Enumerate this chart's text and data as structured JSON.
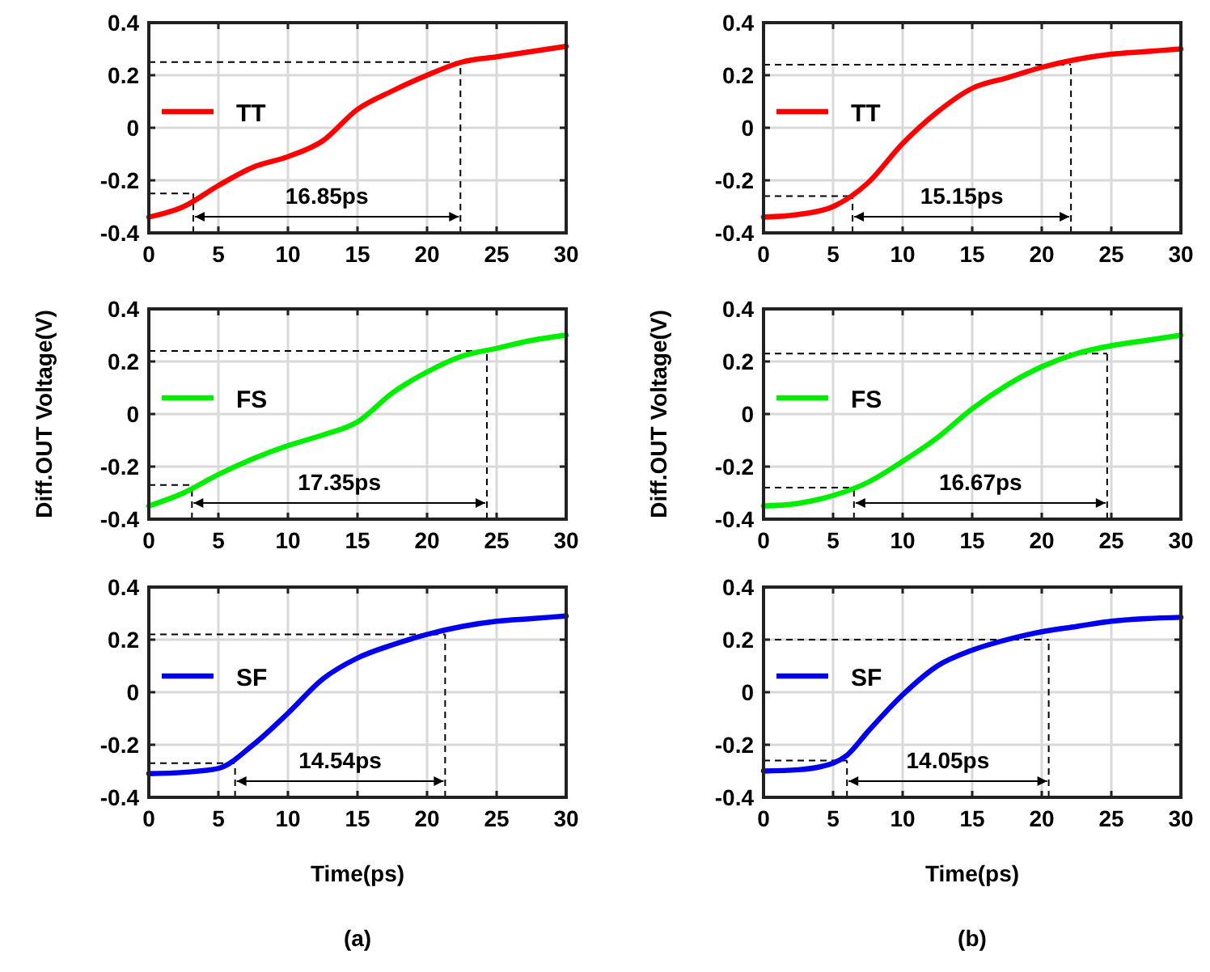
{
  "chart_data": [
    {
      "type": "line",
      "series": [
        {
          "name": "TT",
          "color": "#ff0000",
          "x": [
            0,
            2.5,
            5,
            7.5,
            10,
            12.5,
            15,
            17.5,
            20,
            22.5,
            25,
            27.5,
            30
          ],
          "values": [
            -0.34,
            -0.3,
            -0.22,
            -0.15,
            -0.11,
            -0.05,
            0.07,
            0.14,
            0.2,
            0.25,
            0.27,
            0.29,
            0.31
          ]
        }
      ],
      "xlim": [
        0,
        30
      ],
      "ylim": [
        -0.4,
        0.4
      ],
      "xticks": [
        0,
        5,
        10,
        15,
        20,
        25,
        30
      ],
      "yticks": [
        -0.4,
        -0.2,
        0,
        0.2,
        0.4
      ],
      "grid": true,
      "legend": "left",
      "line_style": "solid",
      "ref_lines": [
        {
          "axis": "y",
          "value": -0.25,
          "color": "#000000",
          "line_style": "dashed"
        },
        {
          "axis": "y",
          "value": 0.25,
          "color": "#000000",
          "line_style": "dashed"
        },
        {
          "axis": "x",
          "value": 3.2,
          "color": "#000000",
          "line_style": "dashed"
        },
        {
          "axis": "x",
          "value": 22.4,
          "color": "#000000",
          "line_style": "dashed"
        }
      ],
      "annotations": [
        "16.85ps"
      ]
    },
    {
      "type": "line",
      "series": [
        {
          "name": "FS",
          "color": "#00ee00",
          "x": [
            0,
            2.5,
            5,
            7.5,
            10,
            12.5,
            15,
            17.5,
            20,
            22.5,
            25,
            27.5,
            30
          ],
          "values": [
            -0.35,
            -0.3,
            -0.23,
            -0.17,
            -0.12,
            -0.08,
            -0.03,
            0.08,
            0.16,
            0.22,
            0.25,
            0.28,
            0.3
          ]
        }
      ],
      "xlim": [
        0,
        30
      ],
      "ylim": [
        -0.4,
        0.4
      ],
      "xticks": [
        0,
        5,
        10,
        15,
        20,
        25,
        30
      ],
      "yticks": [
        -0.4,
        -0.2,
        0,
        0.2,
        0.4
      ],
      "grid": true,
      "legend": "left",
      "line_style": "solid",
      "ylabel": "Diff.OUT Voltage(V)",
      "ref_lines": [
        {
          "axis": "y",
          "value": -0.27,
          "color": "#000000",
          "line_style": "dashed"
        },
        {
          "axis": "y",
          "value": 0.24,
          "color": "#000000",
          "line_style": "dashed"
        },
        {
          "axis": "x",
          "value": 3.1,
          "color": "#000000",
          "line_style": "dashed"
        },
        {
          "axis": "x",
          "value": 24.3,
          "color": "#000000",
          "line_style": "dashed"
        }
      ],
      "annotations": [
        "17.35ps"
      ]
    },
    {
      "type": "line",
      "series": [
        {
          "name": "SF",
          "color": "#0000ee",
          "x": [
            0,
            2.5,
            5,
            7.5,
            10,
            12.5,
            15,
            17.5,
            20,
            22.5,
            25,
            27.5,
            30
          ],
          "values": [
            -0.31,
            -0.305,
            -0.29,
            -0.2,
            -0.08,
            0.05,
            0.13,
            0.18,
            0.22,
            0.25,
            0.27,
            0.28,
            0.29
          ]
        }
      ],
      "xlim": [
        0,
        30
      ],
      "ylim": [
        -0.4,
        0.4
      ],
      "xticks": [
        0,
        5,
        10,
        15,
        20,
        25,
        30
      ],
      "yticks": [
        -0.4,
        -0.2,
        0,
        0.2,
        0.4
      ],
      "grid": true,
      "legend": "left",
      "line_style": "solid",
      "xlabel": "Time(ps)",
      "ref_lines": [
        {
          "axis": "y",
          "value": -0.27,
          "color": "#000000",
          "line_style": "dashed"
        },
        {
          "axis": "y",
          "value": 0.22,
          "color": "#000000",
          "line_style": "dashed"
        },
        {
          "axis": "x",
          "value": 6.2,
          "color": "#000000",
          "line_style": "dashed"
        },
        {
          "axis": "x",
          "value": 21.3,
          "color": "#000000",
          "line_style": "dashed"
        }
      ],
      "annotations": [
        "14.54ps",
        "(a)"
      ]
    },
    {
      "type": "line",
      "series": [
        {
          "name": "TT",
          "color": "#ff0000",
          "x": [
            0,
            2.5,
            5,
            7.5,
            10,
            12.5,
            15,
            17.5,
            20,
            22.5,
            25,
            27.5,
            30
          ],
          "values": [
            -0.34,
            -0.33,
            -0.3,
            -0.21,
            -0.06,
            0.06,
            0.15,
            0.19,
            0.23,
            0.26,
            0.28,
            0.29,
            0.3
          ]
        }
      ],
      "xlim": [
        0,
        30
      ],
      "ylim": [
        -0.4,
        0.4
      ],
      "xticks": [
        0,
        5,
        10,
        15,
        20,
        25,
        30
      ],
      "yticks": [
        -0.4,
        -0.2,
        0,
        0.2,
        0.4
      ],
      "grid": true,
      "legend": "left",
      "line_style": "solid",
      "ref_lines": [
        {
          "axis": "y",
          "value": -0.26,
          "color": "#000000",
          "line_style": "dashed"
        },
        {
          "axis": "y",
          "value": 0.24,
          "color": "#000000",
          "line_style": "dashed"
        },
        {
          "axis": "x",
          "value": 6.4,
          "color": "#000000",
          "line_style": "dashed"
        },
        {
          "axis": "x",
          "value": 22.1,
          "color": "#000000",
          "line_style": "dashed"
        }
      ],
      "annotations": [
        "15.15ps"
      ]
    },
    {
      "type": "line",
      "series": [
        {
          "name": "FS",
          "color": "#00ee00",
          "x": [
            0,
            2.5,
            5,
            7.5,
            10,
            12.5,
            15,
            17.5,
            20,
            22.5,
            25,
            27.5,
            30
          ],
          "values": [
            -0.35,
            -0.34,
            -0.31,
            -0.26,
            -0.18,
            -0.09,
            0.02,
            0.11,
            0.18,
            0.23,
            0.26,
            0.28,
            0.3
          ]
        }
      ],
      "xlim": [
        0,
        30
      ],
      "ylim": [
        -0.4,
        0.4
      ],
      "xticks": [
        0,
        5,
        10,
        15,
        20,
        25,
        30
      ],
      "yticks": [
        -0.4,
        -0.2,
        0,
        0.2,
        0.4
      ],
      "grid": true,
      "legend": "left",
      "line_style": "solid",
      "ylabel": "Diff.OUT Voltage(V)",
      "ref_lines": [
        {
          "axis": "y",
          "value": -0.28,
          "color": "#000000",
          "line_style": "dashed"
        },
        {
          "axis": "y",
          "value": 0.23,
          "color": "#000000",
          "line_style": "dashed"
        },
        {
          "axis": "x",
          "value": 6.5,
          "color": "#000000",
          "line_style": "dashed"
        },
        {
          "axis": "x",
          "value": 24.7,
          "color": "#000000",
          "line_style": "dashed"
        }
      ],
      "annotations": [
        "16.67ps"
      ]
    },
    {
      "type": "line",
      "series": [
        {
          "name": "SF",
          "color": "#0000ee",
          "x": [
            0,
            2.5,
            5,
            6,
            7.5,
            10,
            12.5,
            15,
            17.5,
            20,
            22.5,
            25,
            27.5,
            30
          ],
          "values": [
            -0.3,
            -0.295,
            -0.27,
            -0.24,
            -0.15,
            -0.01,
            0.1,
            0.16,
            0.2,
            0.23,
            0.25,
            0.27,
            0.28,
            0.285
          ]
        }
      ],
      "xlim": [
        0,
        30
      ],
      "ylim": [
        -0.4,
        0.4
      ],
      "xticks": [
        0,
        5,
        10,
        15,
        20,
        25,
        30
      ],
      "yticks": [
        -0.4,
        -0.2,
        0,
        0.2,
        0.4
      ],
      "grid": true,
      "legend": "left",
      "line_style": "solid",
      "xlabel": "Time(ps)",
      "ref_lines": [
        {
          "axis": "y",
          "value": -0.26,
          "color": "#000000",
          "line_style": "dashed"
        },
        {
          "axis": "y",
          "value": 0.2,
          "color": "#000000",
          "line_style": "dashed"
        },
        {
          "axis": "x",
          "value": 6,
          "color": "#000000",
          "line_style": "dashed"
        },
        {
          "axis": "x",
          "value": 20.5,
          "color": "#000000",
          "line_style": "dashed"
        }
      ],
      "annotations": [
        "14.05ps",
        "(b)"
      ]
    }
  ]
}
